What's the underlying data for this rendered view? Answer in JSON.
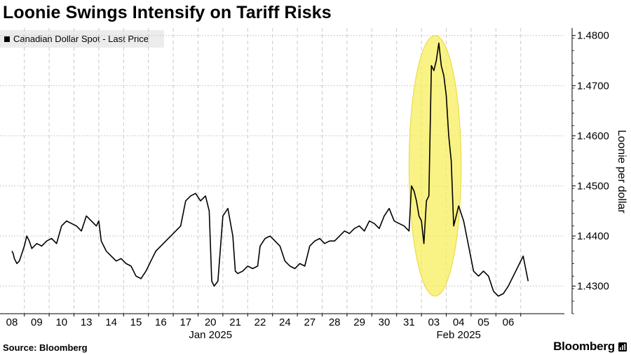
{
  "header": {
    "title": "Loonie Swings Intensify on Tariff Risks"
  },
  "footer": {
    "source": "Source: Bloomberg",
    "brand": "Bloomberg"
  },
  "chart_data": {
    "type": "line",
    "title": "Loonie Swings Intensify on Tariff Risks",
    "ylabel": "Loonie per dollar",
    "ylim": [
      1.4245,
      1.4815
    ],
    "yticks": [
      1.43,
      1.44,
      1.45,
      1.46,
      1.47,
      1.48
    ],
    "ytick_labels": [
      "1.4300",
      "1.4400",
      "1.4500",
      "1.4600",
      "1.4700",
      "1.4800"
    ],
    "x_day_labels": [
      "08",
      "09",
      "10",
      "13",
      "14",
      "15",
      "16",
      "17",
      "20",
      "21",
      "22",
      "24",
      "27",
      "28",
      "29",
      "30",
      "31",
      "03",
      "04",
      "05",
      "06"
    ],
    "x_month_labels": [
      {
        "label": "Jan 2025",
        "at": "20"
      },
      {
        "label": "Feb 2025",
        "at": "04"
      }
    ],
    "grid": true,
    "legend": {
      "position": "top-left",
      "entries": [
        "Canadian Dollar Spot - Last Price"
      ]
    },
    "series": [
      {
        "name": "Canadian Dollar Spot - Last Price",
        "color": "#000000",
        "x": [
          0,
          0.05,
          0.1,
          0.2,
          0.3,
          0.4,
          0.5,
          0.6,
          0.7,
          0.8,
          0.9,
          1.0,
          1.2,
          1.4,
          1.6,
          1.8,
          2.0,
          2.2,
          2.4,
          2.6,
          2.8,
          3.0,
          3.2,
          3.4,
          3.5,
          3.6,
          3.8,
          4.0,
          4.2,
          4.4,
          4.6,
          4.8,
          5.0,
          5.2,
          5.4,
          5.6,
          5.8,
          6.0,
          6.2,
          6.4,
          6.6,
          6.8,
          7.0,
          7.2,
          7.4,
          7.6,
          7.8,
          7.95,
          8.0,
          8.05,
          8.15,
          8.3,
          8.5,
          8.7,
          8.9,
          9.0,
          9.1,
          9.3,
          9.5,
          9.7,
          9.9,
          10.0,
          10.2,
          10.4,
          10.6,
          10.8,
          11.0,
          11.2,
          11.4,
          11.6,
          11.8,
          12.0,
          12.2,
          12.4,
          12.6,
          12.8,
          13.0,
          13.2,
          13.4,
          13.6,
          13.8,
          14.0,
          14.2,
          14.4,
          14.6,
          14.8,
          15.0,
          15.2,
          15.4,
          15.6,
          15.8,
          16.0,
          16.1,
          16.2,
          16.3,
          16.4,
          16.5,
          16.6,
          16.7,
          16.8,
          16.9,
          17.0,
          17.1,
          17.2,
          17.3,
          17.4,
          17.5,
          17.6,
          17.7,
          17.8,
          17.9,
          18.0,
          18.2,
          18.4,
          18.6,
          18.8,
          19.0,
          19.2,
          19.4,
          19.6,
          19.8,
          20.0,
          20.2,
          20.4,
          20.6,
          20.8
        ],
        "values": [
          1.437,
          1.4365,
          1.4355,
          1.4345,
          1.435,
          1.4365,
          1.438,
          1.44,
          1.439,
          1.4375,
          1.438,
          1.4385,
          1.438,
          1.439,
          1.4395,
          1.4385,
          1.442,
          1.443,
          1.4425,
          1.442,
          1.441,
          1.444,
          1.443,
          1.442,
          1.443,
          1.439,
          1.437,
          1.436,
          1.435,
          1.4355,
          1.4345,
          1.434,
          1.432,
          1.4315,
          1.433,
          1.435,
          1.437,
          1.438,
          1.439,
          1.44,
          1.441,
          1.442,
          1.447,
          1.448,
          1.4485,
          1.447,
          1.448,
          1.445,
          1.438,
          1.431,
          1.43,
          1.431,
          1.444,
          1.4455,
          1.44,
          1.433,
          1.4325,
          1.433,
          1.434,
          1.4335,
          1.434,
          1.438,
          1.4395,
          1.44,
          1.439,
          1.438,
          1.435,
          1.434,
          1.4335,
          1.4345,
          1.434,
          1.438,
          1.439,
          1.4395,
          1.4385,
          1.439,
          1.439,
          1.44,
          1.441,
          1.4405,
          1.4415,
          1.442,
          1.441,
          1.443,
          1.4425,
          1.4415,
          1.444,
          1.4455,
          1.443,
          1.4425,
          1.442,
          1.441,
          1.45,
          1.449,
          1.447,
          1.444,
          1.443,
          1.4385,
          1.447,
          1.448,
          1.474,
          1.473,
          1.475,
          1.4785,
          1.474,
          1.472,
          1.468,
          1.46,
          1.455,
          1.442,
          1.444,
          1.446,
          1.443,
          1.438,
          1.433,
          1.432,
          1.433,
          1.432,
          1.429,
          1.428,
          1.4285,
          1.43,
          1.432,
          1.434,
          1.436,
          1.431
        ]
      }
    ],
    "annotations": [
      {
        "type": "highlight-ellipse",
        "color": "#f7ee5c",
        "x_range": [
          16.0,
          18.1
        ],
        "y_range": [
          1.428,
          1.48
        ]
      }
    ]
  }
}
